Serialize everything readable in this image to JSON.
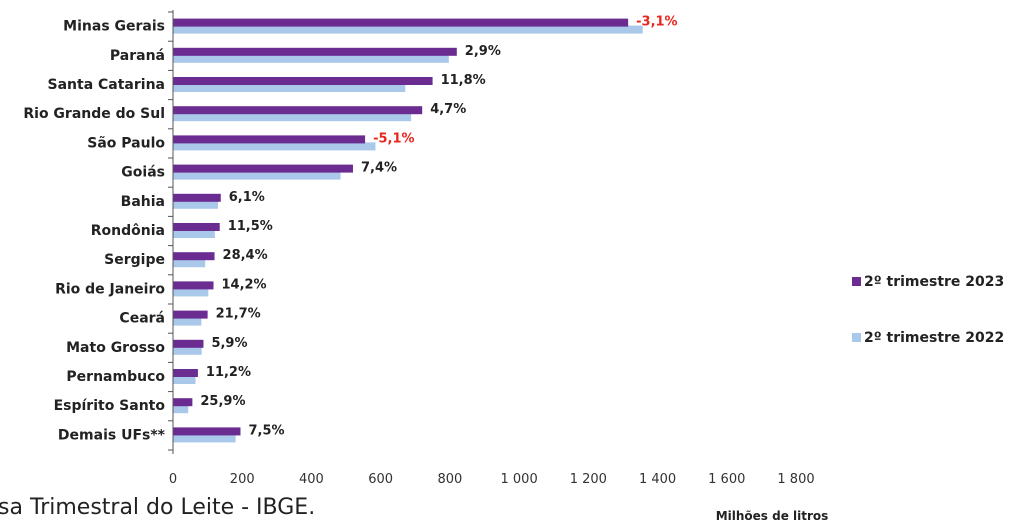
{
  "chart_data": {
    "type": "bar",
    "orientation": "horizontal",
    "categories": [
      "Minas Gerais",
      "Paraná",
      "Santa Catarina",
      "Rio Grande do Sul",
      "São Paulo",
      "Goiás",
      "Bahia",
      "Rondônia",
      "Sergipe",
      "Rio de Janeiro",
      "Ceará",
      "Mato Grosso",
      "Pernambuco",
      "Espírito Santo",
      "Demais UFs**"
    ],
    "series": [
      {
        "name": "2º trimestre 2023",
        "color": "#6a2c91",
        "values": [
          1315,
          820,
          750,
          720,
          555,
          520,
          138,
          135,
          120,
          117,
          100,
          88,
          72,
          56,
          195
        ]
      },
      {
        "name": "2º trimestre 2022",
        "color": "#a9c8ea",
        "values": [
          1357,
          797,
          671,
          688,
          585,
          484,
          130,
          121,
          93,
          102,
          82,
          83,
          65,
          44,
          181
        ]
      }
    ],
    "data_labels": [
      "-3,1%",
      "2,9%",
      "11,8%",
      "4,7%",
      "-5,1%",
      "7,4%",
      "6,1%",
      "11,5%",
      "28,4%",
      "14,2%",
      "21,7%",
      "5,9%",
      "11,2%",
      "25,9%",
      "7,5%"
    ],
    "xticks": [
      "0",
      "200",
      "400",
      "600",
      "800",
      "1 000",
      "1 200",
      "1 400",
      "1 600",
      "1 800"
    ],
    "xlim": [
      0,
      1800
    ],
    "xlabel": "Milhões de litros",
    "legend_position": "right",
    "grid": false
  },
  "source_text": "uisa Trimestral do Leite - IBGE."
}
